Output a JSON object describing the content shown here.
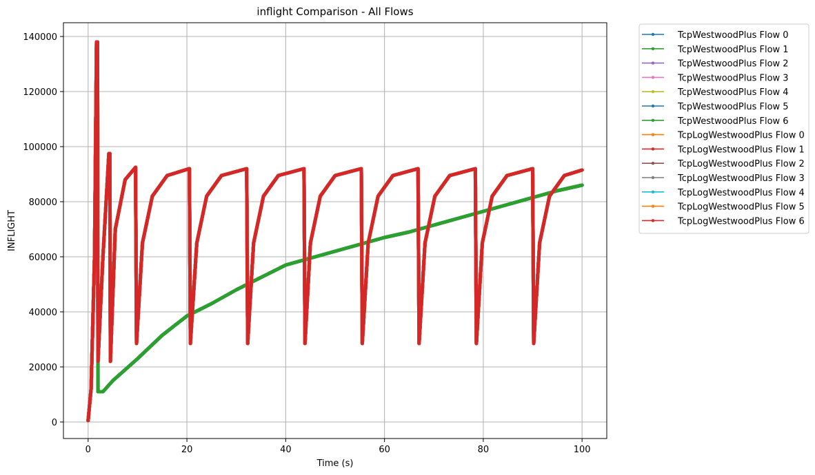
{
  "chart_data": {
    "type": "line",
    "title": "inflight Comparison - All Flows",
    "xlabel": "Time (s)",
    "ylabel": "INFLIGHT",
    "xlim": [
      -5,
      105
    ],
    "ylim": [
      -6000,
      145000
    ],
    "xticks": [
      0,
      20,
      40,
      60,
      80,
      100
    ],
    "yticks": [
      0,
      20000,
      40000,
      60000,
      80000,
      100000,
      120000,
      140000
    ],
    "grid": true,
    "legend_position": "outside-right",
    "series": [
      {
        "name": "TcpWestwoodPlus Flow 0",
        "color": "#1f77b4",
        "pattern": "sawtooth"
      },
      {
        "name": "TcpWestwoodPlus Flow 1",
        "color": "#2ca02c",
        "pattern": "linear"
      },
      {
        "name": "TcpWestwoodPlus Flow 2",
        "color": "#9467bd",
        "pattern": "linear"
      },
      {
        "name": "TcpWestwoodPlus Flow 3",
        "color": "#e377c2",
        "pattern": "sawtooth"
      },
      {
        "name": "TcpWestwoodPlus Flow 4",
        "color": "#bcbd22",
        "pattern": "sawtooth"
      },
      {
        "name": "TcpWestwoodPlus Flow 5",
        "color": "#1f77b4",
        "pattern": "linear"
      },
      {
        "name": "TcpWestwoodPlus Flow 6",
        "color": "#2ca02c",
        "pattern": "linear"
      },
      {
        "name": "TcpLogWestwoodPlus Flow 0",
        "color": "#ff7f0e",
        "pattern": "sawtooth"
      },
      {
        "name": "TcpLogWestwoodPlus Flow 1",
        "color": "#d62728",
        "pattern": "sawtooth"
      },
      {
        "name": "TcpLogWestwoodPlus Flow 2",
        "color": "#8c564b",
        "pattern": "sawtooth"
      },
      {
        "name": "TcpLogWestwoodPlus Flow 3",
        "color": "#7f7f7f",
        "pattern": "sawtooth"
      },
      {
        "name": "TcpLogWestwoodPlus Flow 4",
        "color": "#17becf",
        "pattern": "sawtooth"
      },
      {
        "name": "TcpLogWestwoodPlus Flow 5",
        "color": "#ff7f0e",
        "pattern": "sawtooth"
      },
      {
        "name": "TcpLogWestwoodPlus Flow 6",
        "color": "#d62728",
        "pattern": "sawtooth"
      }
    ],
    "sawtooth_profile": {
      "points": [
        [
          0,
          500
        ],
        [
          0.6,
          12000
        ],
        [
          1.3,
          60000
        ],
        [
          1.7,
          138000
        ],
        [
          1.9,
          138000
        ],
        [
          2.0,
          22000
        ],
        [
          3.0,
          60000
        ],
        [
          4.2,
          97500
        ],
        [
          4.4,
          97500
        ],
        [
          4.5,
          22000
        ],
        [
          5.5,
          70000
        ],
        [
          7.5,
          88000
        ],
        [
          9.6,
          92500
        ],
        [
          9.8,
          28500
        ],
        [
          11,
          65000
        ],
        [
          13,
          82000
        ],
        [
          16,
          89500
        ],
        [
          20.5,
          92000
        ],
        [
          20.7,
          28500
        ],
        [
          22,
          65000
        ],
        [
          24,
          82000
        ],
        [
          27,
          89500
        ],
        [
          32.1,
          92000
        ],
        [
          32.3,
          28500
        ],
        [
          33.5,
          65000
        ],
        [
          35.5,
          82000
        ],
        [
          38.5,
          89500
        ],
        [
          43.7,
          92000
        ],
        [
          43.9,
          28500
        ],
        [
          45,
          65000
        ],
        [
          47,
          82000
        ],
        [
          50,
          89500
        ],
        [
          55.3,
          92000
        ],
        [
          55.5,
          28500
        ],
        [
          56.7,
          65000
        ],
        [
          58.7,
          82000
        ],
        [
          61.7,
          89500
        ],
        [
          66.8,
          92000
        ],
        [
          67.0,
          28500
        ],
        [
          68.2,
          65000
        ],
        [
          70.2,
          82000
        ],
        [
          73.2,
          89500
        ],
        [
          78.4,
          92000
        ],
        [
          78.6,
          28500
        ],
        [
          79.8,
          65000
        ],
        [
          81.8,
          82000
        ],
        [
          84.8,
          89500
        ],
        [
          90.0,
          92000
        ],
        [
          90.2,
          28500
        ],
        [
          91.4,
          65000
        ],
        [
          93.4,
          82000
        ],
        [
          96.4,
          89500
        ],
        [
          100,
          91500
        ]
      ]
    },
    "linear_profile": {
      "points": [
        [
          0,
          500
        ],
        [
          0.6,
          12000
        ],
        [
          1.3,
          60000
        ],
        [
          1.7,
          138000
        ],
        [
          1.9,
          138000
        ],
        [
          2.0,
          11000
        ],
        [
          3.0,
          11000
        ],
        [
          5,
          15000
        ],
        [
          10,
          23000
        ],
        [
          15,
          31500
        ],
        [
          20,
          38500
        ],
        [
          25,
          43000
        ],
        [
          30,
          48000
        ],
        [
          35,
          52500
        ],
        [
          40,
          57000
        ],
        [
          45,
          59500
        ],
        [
          50,
          62000
        ],
        [
          55,
          64500
        ],
        [
          60,
          67000
        ],
        [
          65,
          69000
        ],
        [
          70,
          71500
        ],
        [
          75,
          74000
        ],
        [
          80,
          76500
        ],
        [
          85,
          79000
        ],
        [
          90,
          81500
        ],
        [
          95,
          84000
        ],
        [
          100,
          86000
        ]
      ]
    }
  }
}
